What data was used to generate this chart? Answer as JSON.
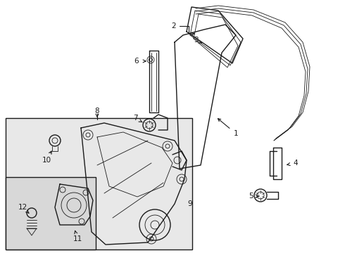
{
  "background_color": "#ffffff",
  "line_color": "#1a1a1a",
  "box_fill": "#e8e8e8",
  "box_fill2": "#d8d8d8",
  "figsize": [
    4.9,
    3.6
  ],
  "dpi": 100,
  "label_fontsize": 7.5
}
